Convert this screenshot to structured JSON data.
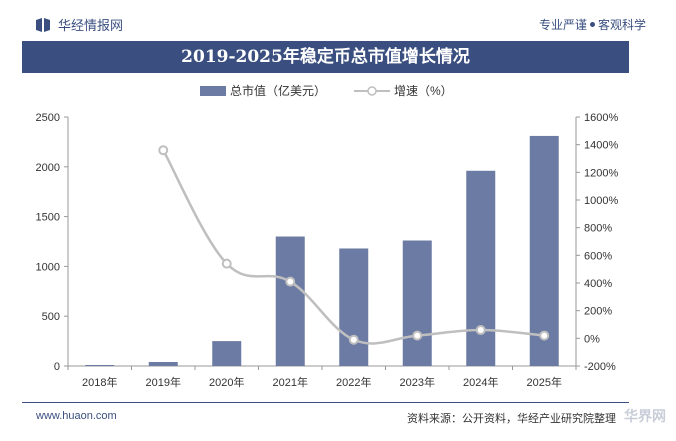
{
  "header": {
    "brand": "华经情报网",
    "slogan_left": "专业严谨",
    "slogan_right": "客观科学"
  },
  "title": "2019-2025年稳定币总市值增长情况",
  "legend": {
    "bar_label": "总市值（亿美元）",
    "line_label": "增速（%）"
  },
  "colors": {
    "bar": "#6b7ba4",
    "line": "#bfbfbf",
    "title_bg": "#3a4f80"
  },
  "chart_data": {
    "type": "bar",
    "categories": [
      "2018年",
      "2019年",
      "2020年",
      "2021年",
      "2022年",
      "2023年",
      "2024年",
      "2025年"
    ],
    "series": [
      {
        "name": "总市值（亿美元）",
        "type": "bar",
        "axis": "left",
        "values": [
          10,
          40,
          250,
          1300,
          1180,
          1260,
          1960,
          2310
        ]
      },
      {
        "name": "增速（%）",
        "type": "line",
        "axis": "right",
        "values": [
          null,
          1360,
          540,
          410,
          -10,
          20,
          60,
          20
        ]
      }
    ],
    "y_left": {
      "min": 0,
      "max": 2500,
      "ticks": [
        "0",
        "500",
        "1000",
        "1500",
        "2000",
        "2500"
      ]
    },
    "y_right": {
      "min": -200,
      "max": 1600,
      "ticks": [
        "-200%",
        "0%",
        "200%",
        "400%",
        "600%",
        "800%",
        "1000%",
        "1200%",
        "1400%",
        "1600%"
      ]
    },
    "grid": false,
    "legend_position": "top"
  },
  "footer": {
    "website": "www.huaon.com",
    "source": "资料来源：公开资料，华经产业研究院整理",
    "corner_mark": "华界网"
  }
}
